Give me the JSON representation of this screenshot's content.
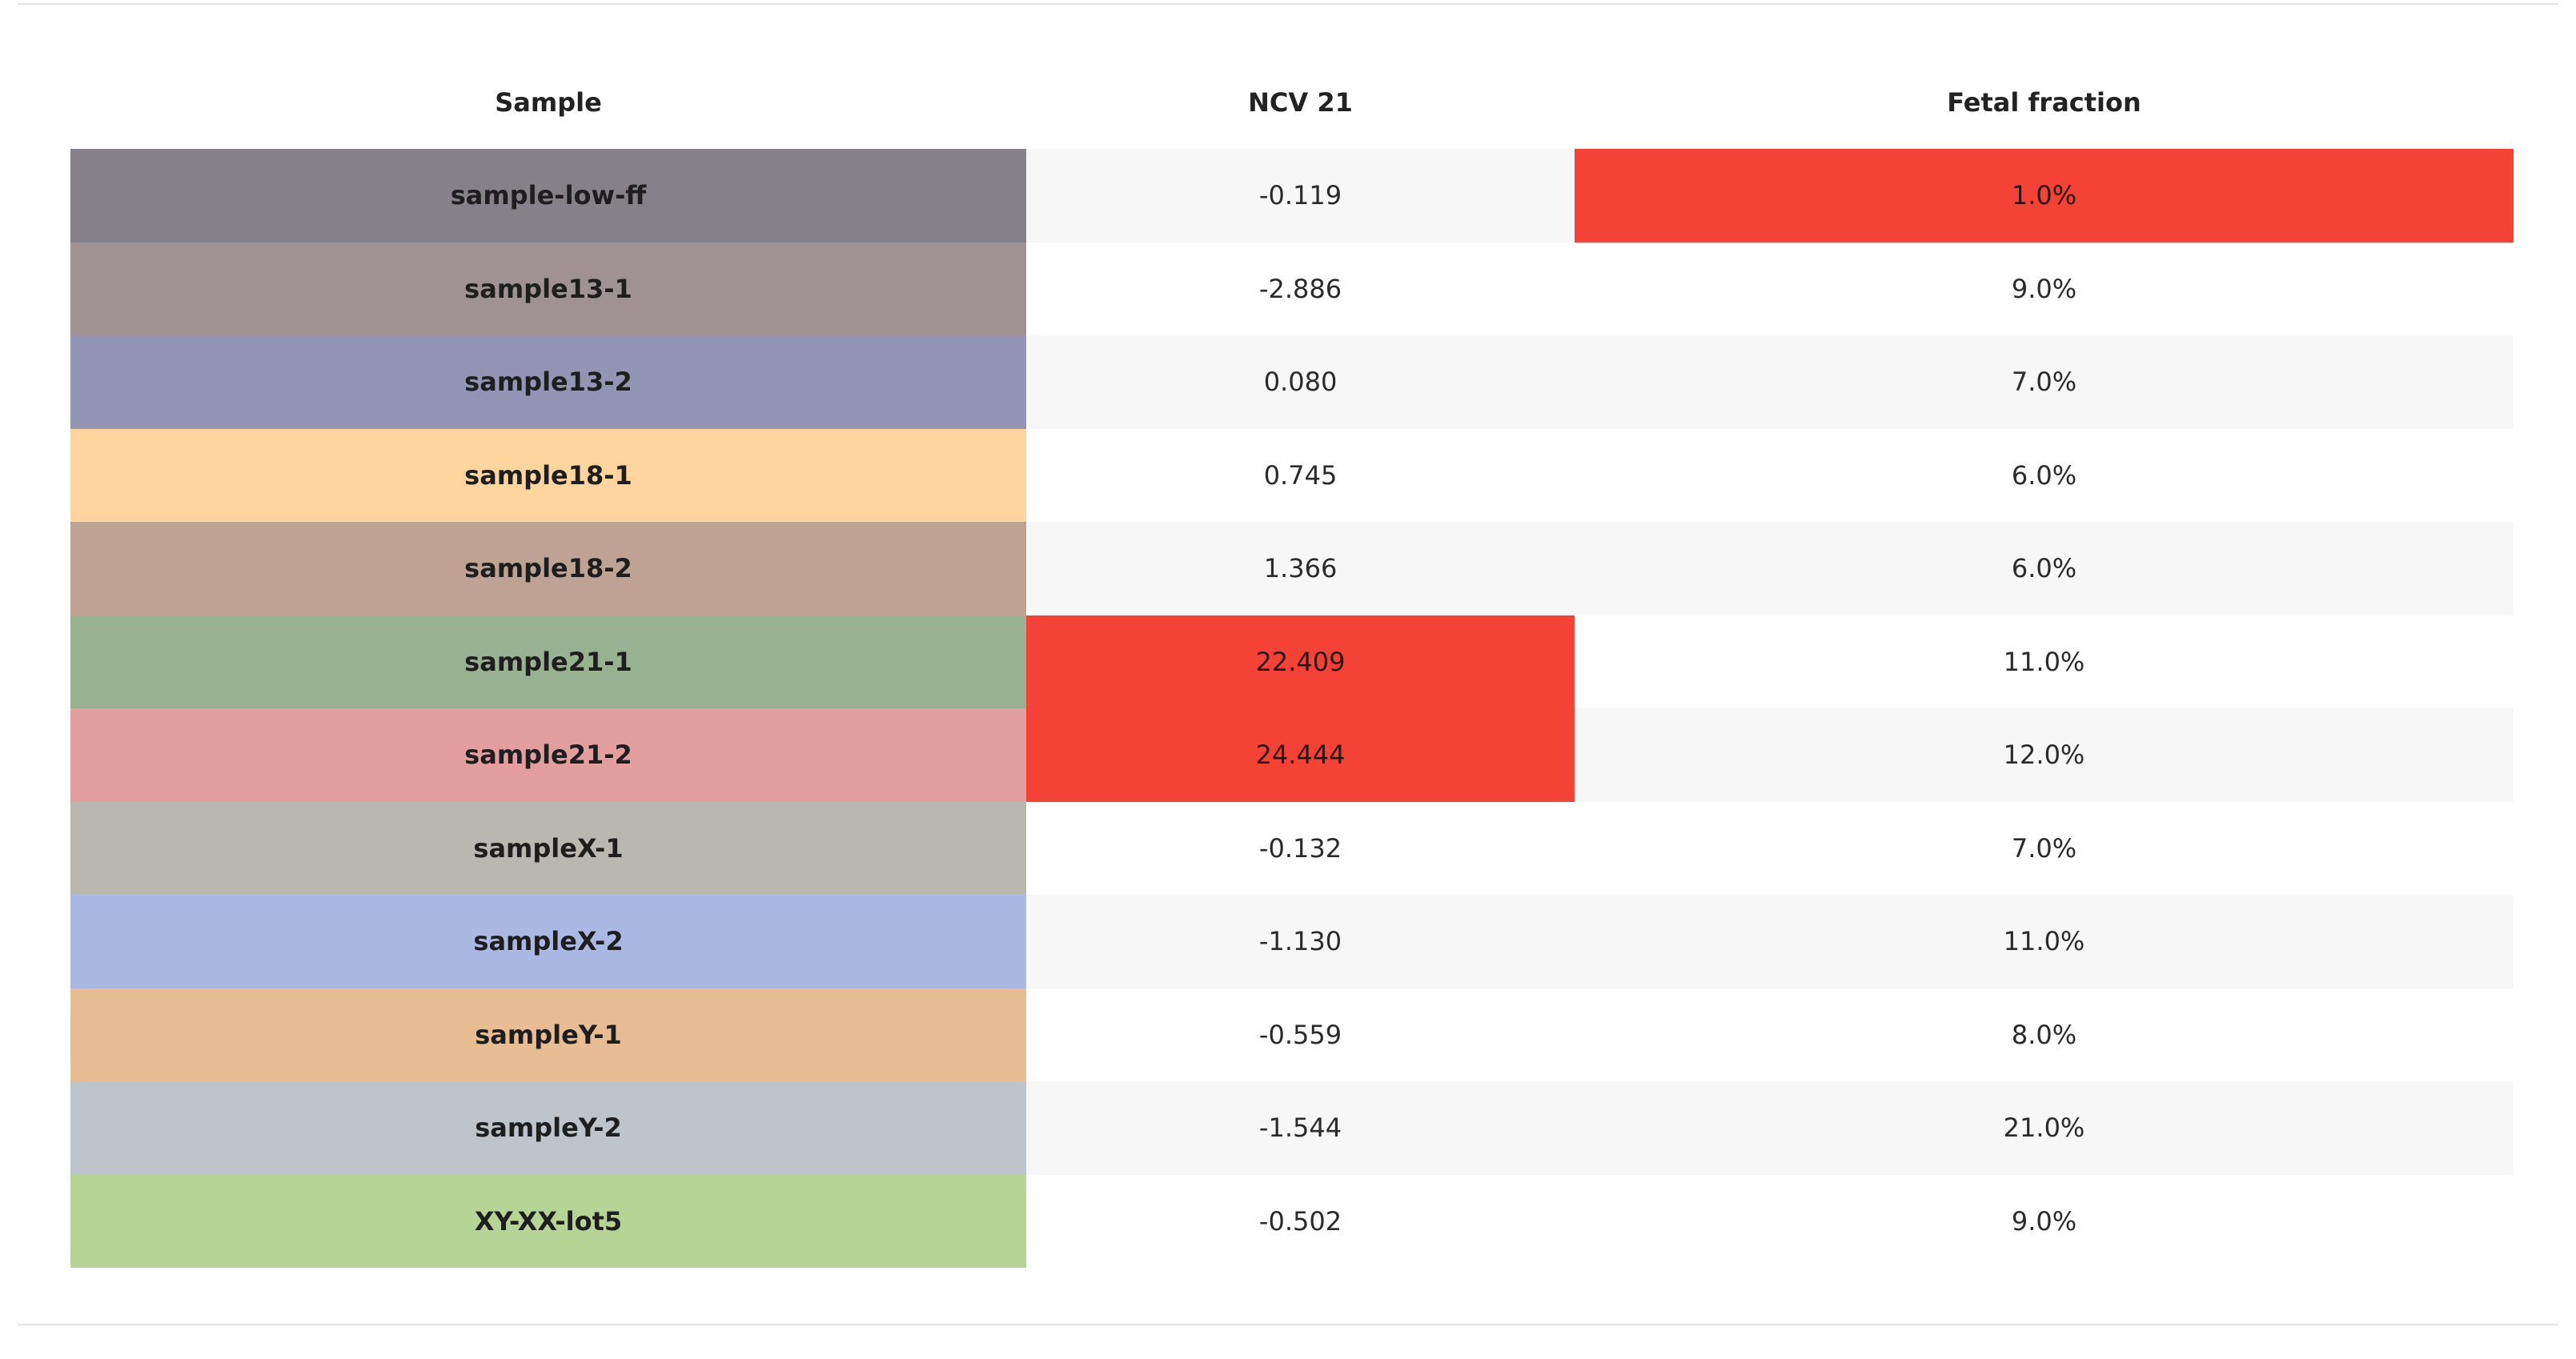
{
  "table": {
    "columns": [
      "Sample",
      "NCV 21",
      "Fetal fraction"
    ],
    "rows": [
      {
        "sample": "sample-low-ff",
        "color": "#868189",
        "ncv21": "-0.119",
        "ff": "1.0%",
        "ncv_flag": false,
        "ff_flag": true
      },
      {
        "sample": "sample13-1",
        "color": "#a09195",
        "ncv21": "-2.886",
        "ff": "9.0%",
        "ncv_flag": false,
        "ff_flag": false
      },
      {
        "sample": "sample13-2",
        "color": "#9495b4",
        "ncv21": "0.080",
        "ff": "7.0%",
        "ncv_flag": false,
        "ff_flag": false
      },
      {
        "sample": "sample18-1",
        "color": "#fed59d",
        "ncv21": "0.745",
        "ff": "6.0%",
        "ncv_flag": false,
        "ff_flag": false
      },
      {
        "sample": "sample18-2",
        "color": "#bea294",
        "ncv21": "1.366",
        "ff": "6.0%",
        "ncv_flag": false,
        "ff_flag": false
      },
      {
        "sample": "sample21-1",
        "color": "#98b190",
        "ncv21": "22.409",
        "ff": "11.0%",
        "ncv_flag": true,
        "ff_flag": false
      },
      {
        "sample": "sample21-2",
        "color": "#e39e9f",
        "ncv21": "24.444",
        "ff": "12.0%",
        "ncv_flag": true,
        "ff_flag": false
      },
      {
        "sample": "sampleX-1",
        "color": "#b9b7b0",
        "ncv21": "-0.132",
        "ff": "7.0%",
        "ncv_flag": false,
        "ff_flag": false
      },
      {
        "sample": "sampleX-2",
        "color": "#a9b9e3",
        "ncv21": "-1.130",
        "ff": "11.0%",
        "ncv_flag": false,
        "ff_flag": false
      },
      {
        "sample": "sampleY-1",
        "color": "#e8bd94",
        "ncv21": "-0.559",
        "ff": "8.0%",
        "ncv_flag": false,
        "ff_flag": false
      },
      {
        "sample": "sampleY-2",
        "color": "#bec4cb",
        "ncv21": "-1.544",
        "ff": "21.0%",
        "ncv_flag": false,
        "ff_flag": false
      },
      {
        "sample": "XY-XX-lot5",
        "color": "#b5d495",
        "ncv21": "-0.502",
        "ff": "9.0%",
        "ncv_flag": false,
        "ff_flag": false
      }
    ]
  },
  "colors": {
    "flag": "#f44336",
    "stripe": "#f7f7f7",
    "rule": "#e3e3e3"
  }
}
